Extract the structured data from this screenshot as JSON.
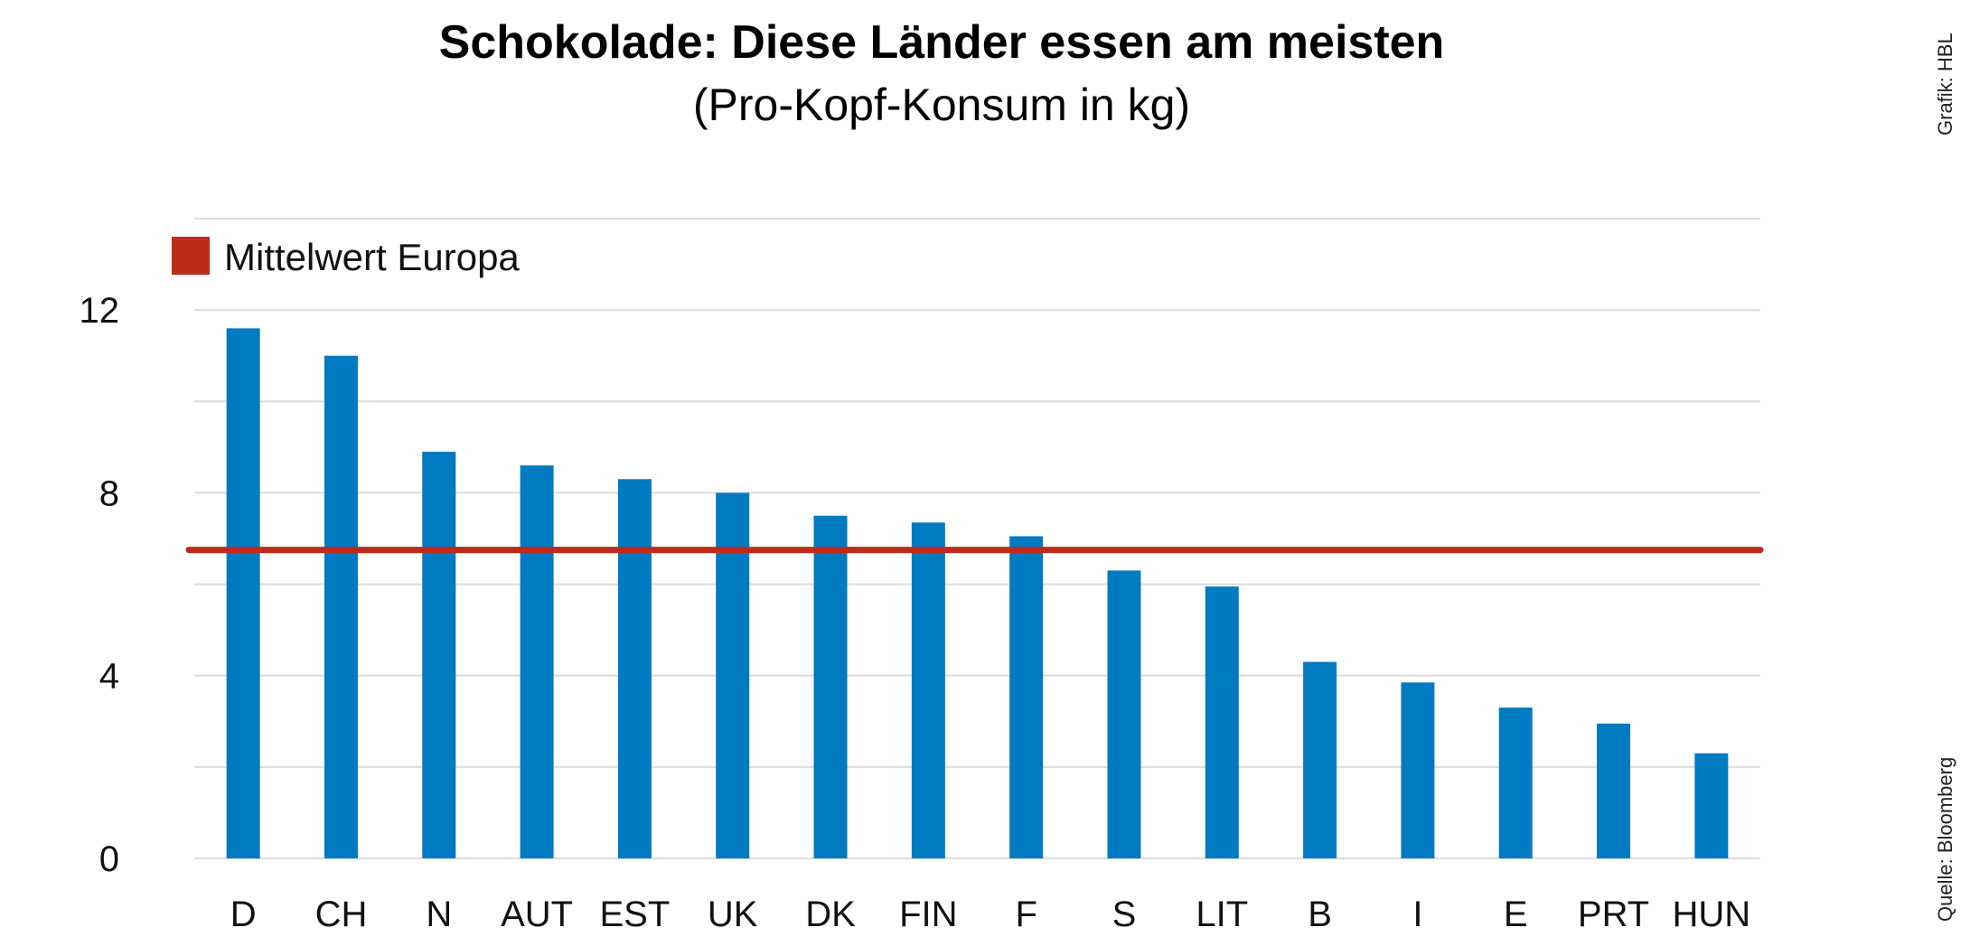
{
  "chart_data": {
    "type": "bar",
    "title": "Schokolade: Diese Länder essen am meisten",
    "subtitle": "(Pro-Kopf-Konsum in kg)",
    "credit": "Grafik: HBL",
    "source": "Quelle: Bloomberg",
    "categories": [
      "D",
      "CH",
      "N",
      "AUT",
      "EST",
      "UK",
      "DK",
      "FIN",
      "F",
      "S",
      "LIT",
      "B",
      "I",
      "E",
      "PRT",
      "HUN"
    ],
    "values": [
      11.6,
      11.0,
      8.9,
      8.6,
      8.3,
      8.0,
      7.5,
      7.35,
      7.05,
      6.3,
      5.95,
      4.3,
      3.85,
      3.3,
      2.95,
      2.3
    ],
    "reference_line": {
      "name": "Mittelwert Europa",
      "value": 6.75
    },
    "legend": {
      "label": "Mittelwert Europa",
      "position": "top-left"
    },
    "ylim": [
      0,
      14
    ],
    "yticks": [
      "0",
      "4",
      "8",
      "12"
    ],
    "grid": true,
    "xlabel": "",
    "ylabel": "",
    "colors": {
      "bar": "#007ac0",
      "reference": "#bf2b1a",
      "grid": "#dcdcdc"
    }
  }
}
